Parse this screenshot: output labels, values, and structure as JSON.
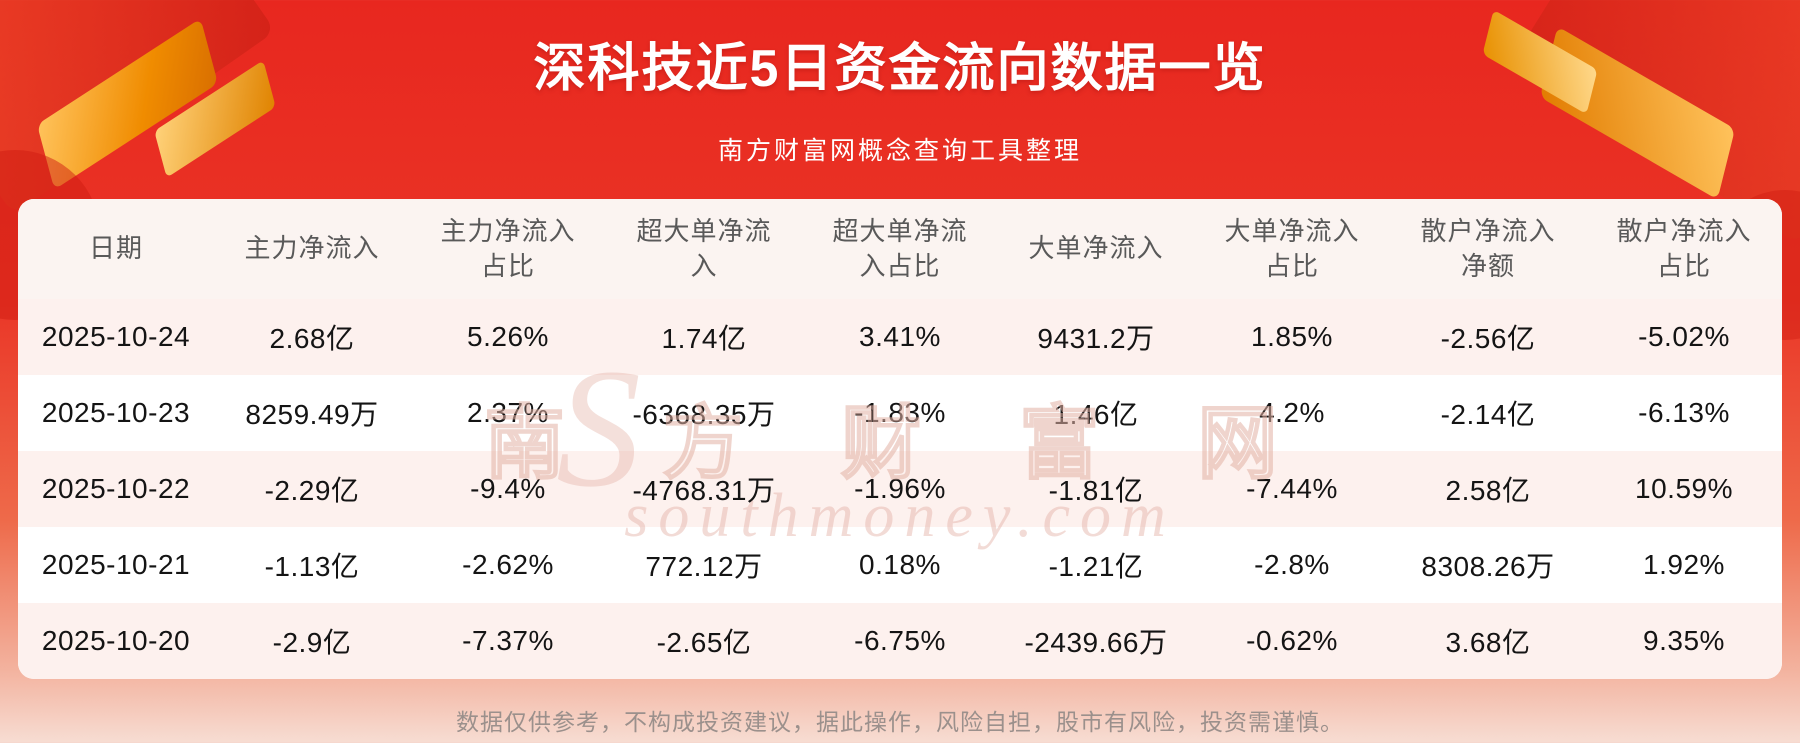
{
  "header": {
    "title": "深科技近5日资金流向数据一览",
    "subtitle": "南方财富网概念查询工具整理"
  },
  "table": {
    "columns": [
      "日期",
      "主力净流入",
      "主力净流入\n占比",
      "超大单净流\n入",
      "超大单净流\n入占比",
      "大单净流入",
      "大单净流入\n占比",
      "散户净流入\n净额",
      "散户净流入\n占比"
    ],
    "rows": [
      {
        "cells": [
          "2025-10-24",
          "2.68亿",
          "5.26%",
          "1.74亿",
          "3.41%",
          "9431.2万",
          "1.85%",
          "-2.56亿",
          "-5.02%"
        ]
      },
      {
        "cells": [
          "2025-10-23",
          "8259.49万",
          "2.37%",
          "-6368.35万",
          "-1.83%",
          "1.46亿",
          "4.2%",
          "-2.14亿",
          "-6.13%"
        ]
      },
      {
        "cells": [
          "2025-10-22",
          "-2.29亿",
          "-9.4%",
          "-4768.31万",
          "-1.96%",
          "-1.81亿",
          "-7.44%",
          "2.58亿",
          "10.59%"
        ]
      },
      {
        "cells": [
          "2025-10-21",
          "-1.13亿",
          "-2.62%",
          "772.12万",
          "0.18%",
          "-1.21亿",
          "-2.8%",
          "8308.26万",
          "1.92%"
        ]
      },
      {
        "cells": [
          "2025-10-20",
          "-2.9亿",
          "-7.37%",
          "-2.65亿",
          "-6.75%",
          "-2439.66万",
          "-0.62%",
          "3.68亿",
          "9.35%"
        ]
      }
    ]
  },
  "watermark": {
    "letter_s": "S",
    "text_cn": "南 方 财 富 网",
    "text_en": "southmoney.com"
  },
  "footer": {
    "disclaimer": "数据仅供参考，不构成投资建议，据此操作，风险自担，股市有风险，投资需谨慎。"
  },
  "colors": {
    "background_red": "#e8271f",
    "background_bottom": "#f7ddd3",
    "row_stripe": "#fdf1ee",
    "header_text": "#595959",
    "cell_text": "#141414",
    "title_text": "#ffffff",
    "gold_accent": "#f08c00"
  },
  "chart_data": {
    "type": "table",
    "title": "深科技近5日资金流向数据一览",
    "subtitle": "南方财富网概念查询工具整理",
    "columns": [
      "日期",
      "主力净流入",
      "主力净流入占比",
      "超大单净流入",
      "超大单净流入占比",
      "大单净流入",
      "大单净流入占比",
      "散户净流入净额",
      "散户净流入占比"
    ],
    "rows": [
      [
        "2025-10-24",
        "2.68亿",
        "5.26%",
        "1.74亿",
        "3.41%",
        "9431.2万",
        "1.85%",
        "-2.56亿",
        "-5.02%"
      ],
      [
        "2025-10-23",
        "8259.49万",
        "2.37%",
        "-6368.35万",
        "-1.83%",
        "1.46亿",
        "4.2%",
        "-2.14亿",
        "-6.13%"
      ],
      [
        "2025-10-22",
        "-2.29亿",
        "-9.4%",
        "-4768.31万",
        "-1.96%",
        "-1.81亿",
        "-7.44%",
        "2.58亿",
        "10.59%"
      ],
      [
        "2025-10-21",
        "-1.13亿",
        "-2.62%",
        "772.12万",
        "0.18%",
        "-1.21亿",
        "-2.8%",
        "8308.26万",
        "1.92%"
      ],
      [
        "2025-10-20",
        "-2.9亿",
        "-7.37%",
        "-2.65亿",
        "-6.75%",
        "-2439.66万",
        "-0.62%",
        "3.68亿",
        "9.35%"
      ]
    ]
  }
}
